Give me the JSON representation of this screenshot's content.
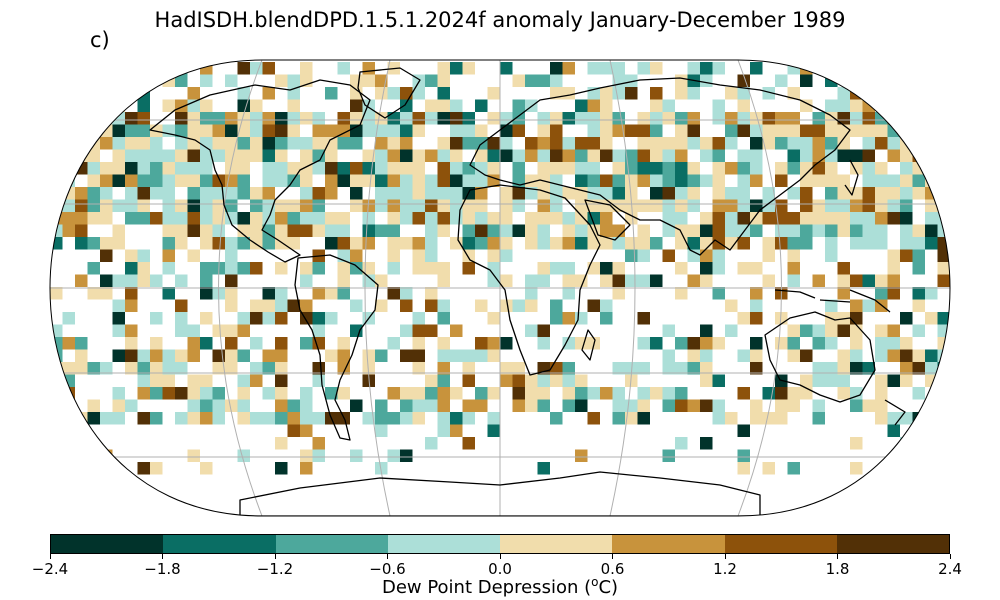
{
  "title": "HadISDH.blendDPD.1.5.1.2024f anomaly January-December 1989",
  "panel_label": "c)",
  "colorbar": {
    "label_prefix": "Dew Point Depression (",
    "label_sup": "o",
    "label_suffix": "C)",
    "ticks": [
      "−2.4",
      "−1.8",
      "−1.2",
      "−0.6",
      "0.0",
      "0.6",
      "1.2",
      "1.8",
      "2.4"
    ],
    "colors": [
      "#01332b",
      "#0a6e64",
      "#4da89c",
      "#acdfd8",
      "#f1ddac",
      "#c8933c",
      "#8d520b",
      "#523006"
    ]
  },
  "map": {
    "projection": "Robinson",
    "ocean_color": "#ffffff",
    "coastline_color": "#000000",
    "gridline_color": "#b0b0b0"
  }
}
